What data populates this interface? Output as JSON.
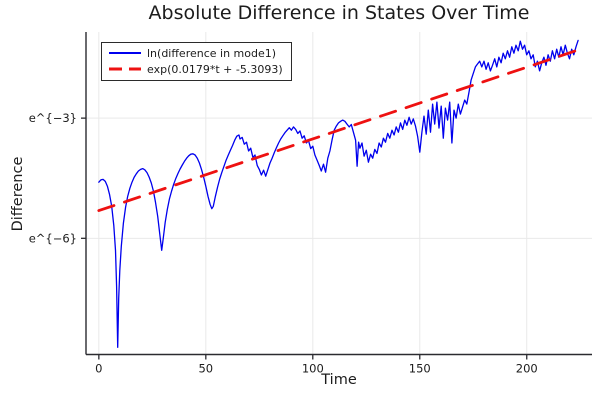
{
  "colors": {
    "background": "#ffffff",
    "grid": "#e9e9e9",
    "axis": "#2b2b30",
    "text": "#1c1c1c",
    "series_blue": "#0000ee",
    "series_red": "#ee1111"
  },
  "chart_data": {
    "type": "line",
    "title": "Absolute Difference in States Over Time",
    "xlabel": "Time",
    "ylabel": "Difference",
    "y_scale": "log",
    "y_values_are": "natural log of plotted difference",
    "grid": true,
    "legend_position": "top-left",
    "xlim": [
      -6,
      230.5
    ],
    "ylim_ln": [
      -0.85,
      -8.9
    ],
    "x_ticks": [
      {
        "value": 0,
        "label": "0"
      },
      {
        "value": 50,
        "label": "50"
      },
      {
        "value": 100,
        "label": "100"
      },
      {
        "value": 150,
        "label": "150"
      },
      {
        "value": 200,
        "label": "200"
      }
    ],
    "y_ticks": [
      {
        "ln": -3,
        "label": "e^{−3}"
      },
      {
        "ln": -6,
        "label": "e^{−6}"
      }
    ],
    "series": [
      {
        "id": "difference-series",
        "name": "ln(difference in mode1)",
        "color": "#0000ee",
        "style": "solid",
        "points_ln": [
          [
            0,
            -4.6
          ],
          [
            1,
            -4.54
          ],
          [
            2,
            -4.53
          ],
          [
            3,
            -4.58
          ],
          [
            4,
            -4.7
          ],
          [
            5,
            -4.9
          ],
          [
            6,
            -5.2
          ],
          [
            7,
            -5.68
          ],
          [
            7.8,
            -6.3
          ],
          [
            8.3,
            -7.2
          ],
          [
            8.8,
            -8.72
          ],
          [
            9.3,
            -7.5
          ],
          [
            9.8,
            -6.8
          ],
          [
            10.5,
            -6.2
          ],
          [
            11.5,
            -5.62
          ],
          [
            12.5,
            -5.22
          ],
          [
            13.5,
            -4.95
          ],
          [
            14.5,
            -4.75
          ],
          [
            15.5,
            -4.6
          ],
          [
            16.5,
            -4.48
          ],
          [
            17.5,
            -4.39
          ],
          [
            18.5,
            -4.32
          ],
          [
            19.5,
            -4.28
          ],
          [
            20.5,
            -4.26
          ],
          [
            21.5,
            -4.29
          ],
          [
            22.5,
            -4.36
          ],
          [
            23.5,
            -4.47
          ],
          [
            24.5,
            -4.62
          ],
          [
            25.5,
            -4.82
          ],
          [
            26.5,
            -5.1
          ],
          [
            27.5,
            -5.45
          ],
          [
            28.5,
            -5.9
          ],
          [
            29.4,
            -6.3
          ],
          [
            30,
            -6.05
          ],
          [
            31,
            -5.6
          ],
          [
            32,
            -5.28
          ],
          [
            33,
            -5.02
          ],
          [
            34,
            -4.82
          ],
          [
            35,
            -4.65
          ],
          [
            36,
            -4.5
          ],
          [
            37,
            -4.38
          ],
          [
            38,
            -4.27
          ],
          [
            39,
            -4.17
          ],
          [
            40,
            -4.08
          ],
          [
            41,
            -4.0
          ],
          [
            42,
            -3.94
          ],
          [
            43,
            -3.9
          ],
          [
            44,
            -3.89
          ],
          [
            45,
            -3.92
          ],
          [
            46,
            -4.0
          ],
          [
            47,
            -4.12
          ],
          [
            48,
            -4.28
          ],
          [
            49,
            -4.48
          ],
          [
            50,
            -4.7
          ],
          [
            51,
            -4.95
          ],
          [
            52,
            -5.15
          ],
          [
            52.8,
            -5.26
          ],
          [
            53.5,
            -5.2
          ],
          [
            54.5,
            -4.95
          ],
          [
            55.5,
            -4.72
          ],
          [
            56.5,
            -4.52
          ],
          [
            57.5,
            -4.35
          ],
          [
            58.5,
            -4.2
          ],
          [
            59.5,
            -4.05
          ],
          [
            60.5,
            -3.92
          ],
          [
            61.5,
            -3.8
          ],
          [
            62.5,
            -3.68
          ],
          [
            63.5,
            -3.55
          ],
          [
            64.5,
            -3.45
          ],
          [
            65.5,
            -3.42
          ],
          [
            66,
            -3.52
          ],
          [
            67,
            -3.48
          ],
          [
            68,
            -3.65
          ],
          [
            69,
            -3.6
          ],
          [
            70,
            -3.82
          ],
          [
            71,
            -3.75
          ],
          [
            72,
            -3.98
          ],
          [
            73,
            -3.92
          ],
          [
            74,
            -4.18
          ],
          [
            75,
            -4.28
          ],
          [
            76,
            -4.42
          ],
          [
            77,
            -4.3
          ],
          [
            78,
            -4.45
          ],
          [
            79,
            -4.28
          ],
          [
            80,
            -4.12
          ],
          [
            81,
            -4.0
          ],
          [
            82,
            -3.86
          ],
          [
            83,
            -3.74
          ],
          [
            84,
            -3.62
          ],
          [
            85,
            -3.52
          ],
          [
            86,
            -3.44
          ],
          [
            87,
            -3.36
          ],
          [
            88,
            -3.3
          ],
          [
            89,
            -3.24
          ],
          [
            90,
            -3.3
          ],
          [
            91,
            -3.22
          ],
          [
            92,
            -3.28
          ],
          [
            93,
            -3.38
          ],
          [
            94,
            -3.32
          ],
          [
            95,
            -3.5
          ],
          [
            96,
            -3.44
          ],
          [
            97,
            -3.62
          ],
          [
            98,
            -3.56
          ],
          [
            99,
            -3.76
          ],
          [
            100,
            -3.7
          ],
          [
            101,
            -3.92
          ],
          [
            102,
            -4.05
          ],
          [
            103,
            -4.18
          ],
          [
            104,
            -4.32
          ],
          [
            105,
            -4.15
          ],
          [
            106,
            -4.35
          ],
          [
            107,
            -4.0
          ],
          [
            108,
            -3.82
          ],
          [
            109,
            -3.55
          ],
          [
            110,
            -3.3
          ],
          [
            111,
            -3.2
          ],
          [
            112,
            -3.12
          ],
          [
            113,
            -3.08
          ],
          [
            114,
            -3.05
          ],
          [
            115,
            -3.08
          ],
          [
            116,
            -3.15
          ],
          [
            117,
            -3.22
          ],
          [
            118,
            -3.16
          ],
          [
            119,
            -3.35
          ],
          [
            120,
            -3.55
          ],
          [
            120.7,
            -4.2
          ],
          [
            121.4,
            -3.6
          ],
          [
            122,
            -3.75
          ],
          [
            123,
            -3.62
          ],
          [
            124,
            -3.95
          ],
          [
            125,
            -3.8
          ],
          [
            126,
            -4.1
          ],
          [
            127,
            -3.9
          ],
          [
            128,
            -4.0
          ],
          [
            129,
            -3.78
          ],
          [
            130,
            -3.88
          ],
          [
            131,
            -3.62
          ],
          [
            132,
            -3.72
          ],
          [
            133,
            -3.5
          ],
          [
            134,
            -3.6
          ],
          [
            135,
            -3.38
          ],
          [
            136,
            -3.5
          ],
          [
            137,
            -3.3
          ],
          [
            138,
            -3.42
          ],
          [
            139,
            -3.22
          ],
          [
            140,
            -3.35
          ],
          [
            141,
            -3.12
          ],
          [
            142,
            -3.28
          ],
          [
            143,
            -3.05
          ],
          [
            144,
            -3.18
          ],
          [
            145,
            -2.98
          ],
          [
            146,
            -3.15
          ],
          [
            147,
            -3.02
          ],
          [
            148,
            -3.2
          ],
          [
            149,
            -3.45
          ],
          [
            150,
            -3.85
          ],
          [
            151,
            -3.35
          ],
          [
            152,
            -2.95
          ],
          [
            153,
            -3.4
          ],
          [
            154,
            -2.8
          ],
          [
            155,
            -3.35
          ],
          [
            156,
            -2.65
          ],
          [
            157,
            -3.15
          ],
          [
            158,
            -2.6
          ],
          [
            159,
            -3.25
          ],
          [
            160,
            -2.7
          ],
          [
            161,
            -3.5
          ],
          [
            162,
            -2.75
          ],
          [
            163,
            -3.05
          ],
          [
            164,
            -2.6
          ],
          [
            165,
            -3.62
          ],
          [
            166,
            -2.8
          ],
          [
            167,
            -3.0
          ],
          [
            168,
            -2.65
          ],
          [
            169,
            -2.9
          ],
          [
            170,
            -2.72
          ],
          [
            171,
            -2.55
          ],
          [
            172,
            -2.65
          ],
          [
            173,
            -2.35
          ],
          [
            174,
            -2.05
          ],
          [
            175,
            -1.88
          ],
          [
            176,
            -1.72
          ],
          [
            177,
            -1.65
          ],
          [
            178,
            -1.58
          ],
          [
            179,
            -1.72
          ],
          [
            180,
            -1.58
          ],
          [
            181,
            -1.78
          ],
          [
            182,
            -1.62
          ],
          [
            183,
            -1.82
          ],
          [
            184,
            -1.68
          ],
          [
            185,
            -1.52
          ],
          [
            186,
            -1.72
          ],
          [
            187,
            -1.48
          ],
          [
            188,
            -1.62
          ],
          [
            189,
            -1.38
          ],
          [
            190,
            -1.52
          ],
          [
            191,
            -1.32
          ],
          [
            192,
            -1.48
          ],
          [
            193,
            -1.22
          ],
          [
            194,
            -1.38
          ],
          [
            195,
            -1.18
          ],
          [
            196,
            -1.32
          ],
          [
            197,
            -1.08
          ],
          [
            198,
            -1.28
          ],
          [
            199,
            -1.18
          ],
          [
            200,
            -1.42
          ],
          [
            201,
            -1.32
          ],
          [
            202,
            -1.52
          ],
          [
            203,
            -1.42
          ],
          [
            204,
            -1.72
          ],
          [
            205,
            -1.58
          ],
          [
            206,
            -1.82
          ],
          [
            207,
            -1.62
          ],
          [
            208,
            -1.48
          ],
          [
            209,
            -1.68
          ],
          [
            210,
            -1.42
          ],
          [
            211,
            -1.58
          ],
          [
            212,
            -1.32
          ],
          [
            213,
            -1.52
          ],
          [
            214,
            -1.28
          ],
          [
            215,
            -1.48
          ],
          [
            216,
            -1.22
          ],
          [
            217,
            -1.42
          ],
          [
            218,
            -1.18
          ],
          [
            219,
            -1.38
          ],
          [
            220,
            -1.52
          ],
          [
            221,
            -1.28
          ],
          [
            222,
            -1.42
          ],
          [
            223,
            -1.22
          ],
          [
            224,
            -1.06
          ]
        ]
      },
      {
        "id": "exp-fit",
        "name": "exp(0.0179*t + -5.3093)",
        "color": "#ee1111",
        "style": "dashed",
        "fit": {
          "slope": 0.0179,
          "intercept": -5.3093
        },
        "points_ln": [
          [
            0,
            -5.3093
          ],
          [
            224,
            -1.2997
          ]
        ]
      }
    ]
  }
}
